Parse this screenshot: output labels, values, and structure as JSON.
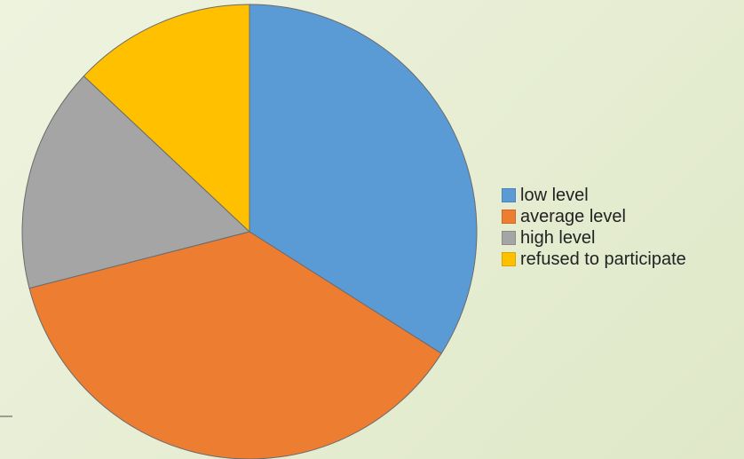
{
  "chart_data": {
    "type": "pie",
    "title": "",
    "categories": [
      "low level",
      "average level",
      "high level",
      "refused to participate"
    ],
    "values": [
      34,
      37,
      16,
      13
    ],
    "colors": [
      "#5b9bd5",
      "#ed7d31",
      "#a5a5a5",
      "#ffc000"
    ],
    "start_angle_deg": 0,
    "direction": "clockwise",
    "legend": {
      "placement": "right",
      "entries": [
        "low level",
        "average level",
        "high level",
        "refused to participate"
      ]
    }
  }
}
